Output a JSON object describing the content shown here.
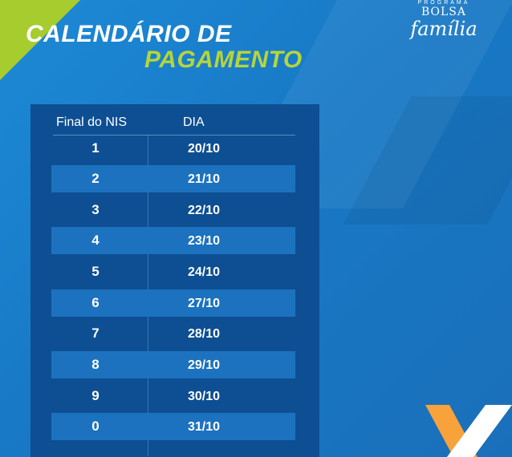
{
  "title": {
    "line1": "CALENDÁRIO DE",
    "line2": "PAGAMENTO"
  },
  "logo": {
    "top": "PROGRAMA",
    "mid": "BOLSA",
    "script": "família"
  },
  "table": {
    "headers": {
      "nis": "Final do NIS",
      "dia": "DIA"
    },
    "rows": [
      {
        "nis": "1",
        "dia": "20/10"
      },
      {
        "nis": "2",
        "dia": "21/10"
      },
      {
        "nis": "3",
        "dia": "22/10"
      },
      {
        "nis": "4",
        "dia": "23/10"
      },
      {
        "nis": "5",
        "dia": "24/10"
      },
      {
        "nis": "6",
        "dia": "27/10"
      },
      {
        "nis": "7",
        "dia": "28/10"
      },
      {
        "nis": "8",
        "dia": "29/10"
      },
      {
        "nis": "9",
        "dia": "30/10"
      },
      {
        "nis": "0",
        "dia": "31/10"
      }
    ]
  },
  "colors": {
    "background": "#1a7fcc",
    "title_accent": "#b6d53a",
    "panel": "#0d4f92",
    "row_alt": "#1c72bf"
  }
}
